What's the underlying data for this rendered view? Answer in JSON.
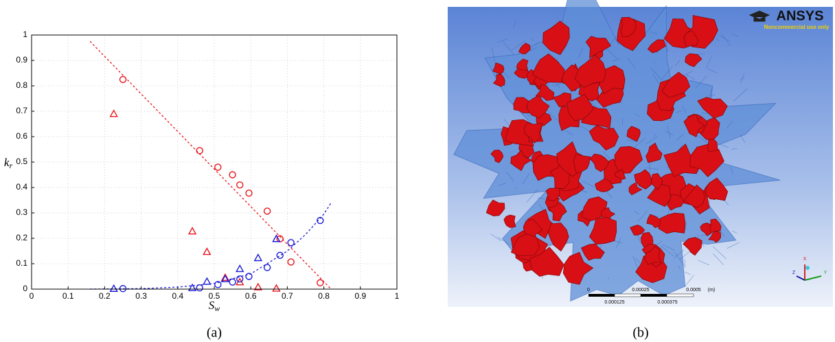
{
  "chart_data": {
    "type": "scatter",
    "caption": "(a)",
    "x_label": {
      "base": "S",
      "sub": "w"
    },
    "y_label": {
      "base": "k",
      "sub": "r"
    },
    "xlim": [
      0,
      1
    ],
    "ylim": [
      0,
      1
    ],
    "xticks": [
      0,
      0.1,
      0.2,
      0.3,
      0.4,
      0.5,
      0.6,
      0.7,
      0.8,
      0.9,
      1
    ],
    "yticks": [
      0,
      0.1,
      0.2,
      0.3,
      0.4,
      0.5,
      0.6,
      0.7,
      0.8,
      0.9,
      1
    ],
    "grid": true,
    "series": [
      {
        "mode": "line",
        "color": "#e8141a",
        "x": [
          0.16,
          0.82
        ],
        "values": [
          0.975,
          0
        ]
      },
      {
        "mode": "line",
        "color": "#1a1ad8",
        "x": [
          0.16,
          0.3,
          0.4,
          0.5,
          0.6,
          0.7,
          0.75,
          0.8,
          0.82
        ],
        "values": [
          0,
          0.002,
          0.008,
          0.022,
          0.06,
          0.15,
          0.215,
          0.295,
          0.34
        ]
      },
      {
        "mode": "circle",
        "color": "#e8141a",
        "x": [
          0.25,
          0.46,
          0.51,
          0.55,
          0.57,
          0.595,
          0.645,
          0.68,
          0.71,
          0.79
        ],
        "values": [
          0.825,
          0.545,
          0.48,
          0.45,
          0.41,
          0.378,
          0.307,
          0.198,
          0.107,
          0.025
        ]
      },
      {
        "mode": "triangle",
        "color": "#e8141a",
        "x": [
          0.225,
          0.44,
          0.48,
          0.53,
          0.57,
          0.62,
          0.67
        ],
        "values": [
          0.69,
          0.228,
          0.147,
          0.045,
          0.028,
          0.008,
          0.003
        ]
      },
      {
        "mode": "circle",
        "color": "#1a1ad8",
        "x": [
          0.25,
          0.46,
          0.51,
          0.55,
          0.57,
          0.595,
          0.645,
          0.68,
          0.71,
          0.79
        ],
        "values": [
          0.002,
          0.005,
          0.018,
          0.028,
          0.04,
          0.05,
          0.085,
          0.133,
          0.183,
          0.27
        ]
      },
      {
        "mode": "triangle",
        "color": "#1a1ad8",
        "x": [
          0.225,
          0.44,
          0.48,
          0.53,
          0.57,
          0.62,
          0.67
        ],
        "values": [
          0.002,
          0.005,
          0.03,
          0.04,
          0.08,
          0.123,
          0.198
        ]
      }
    ]
  },
  "panel_b": {
    "caption": "(b)",
    "logo": "ANSYS",
    "logo_note": "Noncommercial use only",
    "scale_top": [
      "0",
      "0.00025",
      "0.0005",
      "(m)"
    ],
    "scale_bottom": [
      "0.000125",
      "0.000375"
    ],
    "axes": [
      "X",
      "Y",
      "Z"
    ]
  }
}
